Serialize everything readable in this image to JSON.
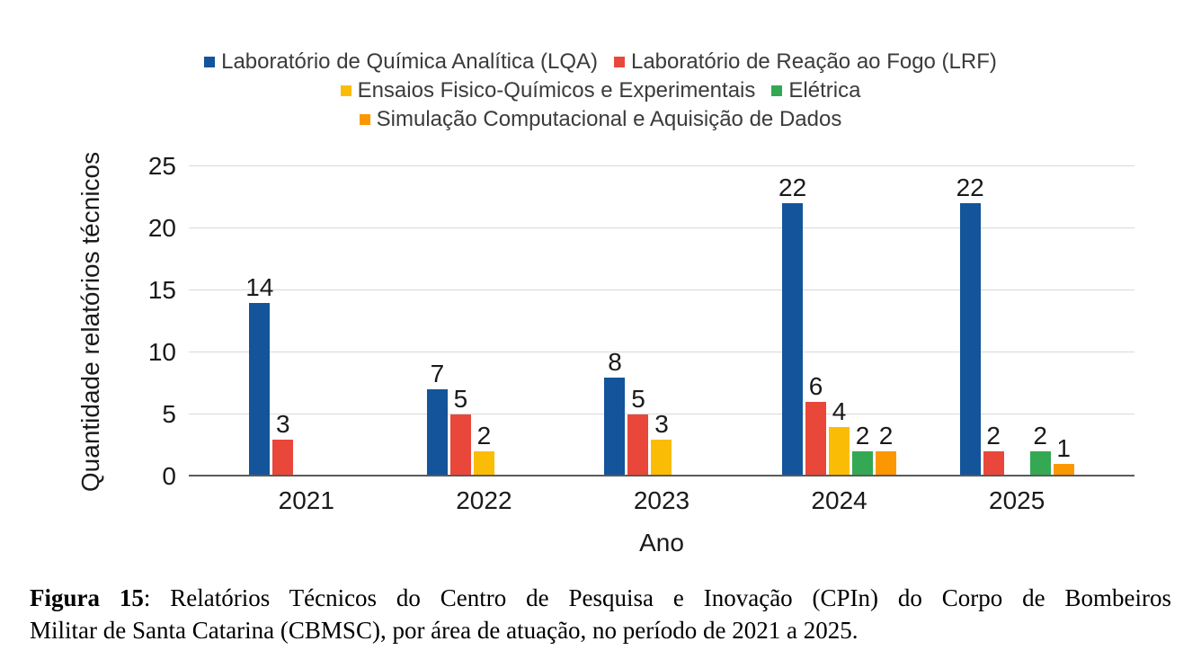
{
  "chart_data": {
    "type": "bar",
    "title": "",
    "categories": [
      "2021",
      "2022",
      "2023",
      "2024",
      "2025"
    ],
    "series": [
      {
        "name": "Laboratório de Química Analítica (LQA)",
        "color": "#13549B",
        "values": [
          14,
          7,
          8,
          22,
          22
        ]
      },
      {
        "name": "Laboratório de Reação ao Fogo (LRF)",
        "color": "#E9473A",
        "values": [
          3,
          5,
          5,
          6,
          2
        ]
      },
      {
        "name": "Ensaios Fisico-Químicos e Experimentais",
        "color": "#FBBC05",
        "values": [
          0,
          2,
          3,
          4,
          0
        ]
      },
      {
        "name": "Elétrica",
        "color": "#34A853",
        "values": [
          0,
          0,
          0,
          2,
          2
        ]
      },
      {
        "name": "Simulação Computacional e Aquisição de Dados",
        "color": "#FB9703",
        "values": [
          0,
          0,
          0,
          2,
          1
        ]
      }
    ],
    "xlabel": "Ano",
    "ylabel": "Quantidade relatórios técnicos",
    "ylim": [
      0,
      25
    ],
    "yticks": [
      0,
      5,
      10,
      15,
      20,
      25
    ],
    "grid": true,
    "legend_position": "top",
    "bar_labels_shown": true,
    "axis_color": "#5a5a5a",
    "gridline_color": "#d9d9d9"
  },
  "legend_layout": {
    "rows": [
      [
        0,
        1
      ],
      [
        2,
        3
      ],
      [
        4
      ]
    ]
  },
  "caption": {
    "label": "Figura 15",
    "line1_rest": ": Relatórios Técnicos do Centro de Pesquisa e Inovação (CPIn) do Corpo de Bombeiros",
    "line2": "Militar de Santa Catarina (CBMSC), por área de atuação, no período de 2021 a 2025."
  }
}
